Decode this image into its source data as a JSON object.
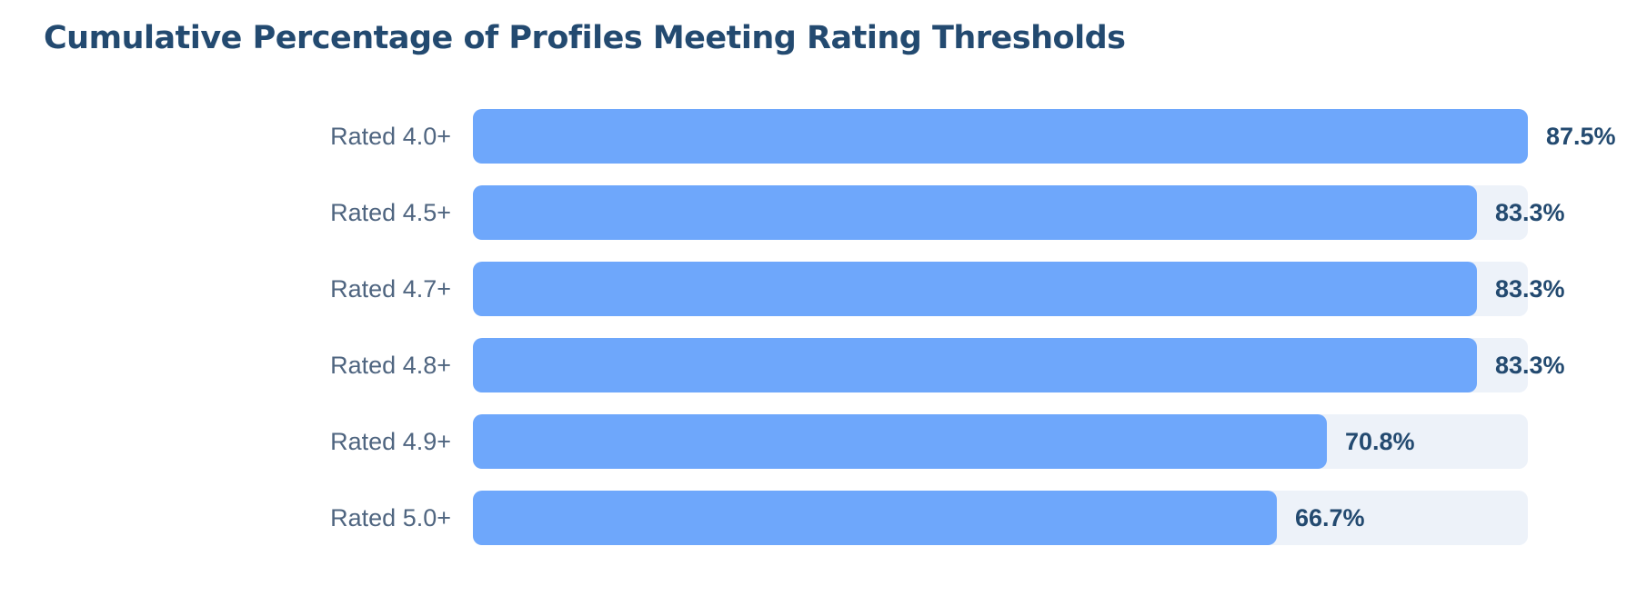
{
  "chart_data": {
    "type": "bar",
    "orientation": "horizontal",
    "title": "Cumulative Percentage of Profiles Meeting Rating Thresholds",
    "xlabel": "",
    "ylabel": "",
    "xlim": [
      0,
      87.5
    ],
    "grid": false,
    "categories": [
      "Rated 4.0+",
      "Rated 4.5+",
      "Rated 4.7+",
      "Rated 4.8+",
      "Rated 4.9+",
      "Rated 5.0+"
    ],
    "values": [
      87.5,
      83.3,
      83.3,
      83.3,
      70.8,
      66.7
    ],
    "value_labels": [
      "87.5%",
      "83.3%",
      "83.3%",
      "83.3%",
      "70.8%",
      "66.7%"
    ],
    "colors": {
      "bar": "#6ea7fb",
      "track": "#edf2f9",
      "title": "#234a70",
      "category_text": "#4f6580",
      "value_text": "#234a70"
    }
  }
}
